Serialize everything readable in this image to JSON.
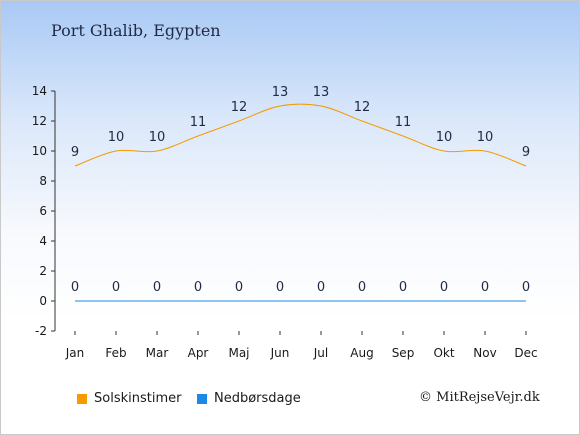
{
  "chart_data": {
    "type": "line",
    "title": "Port Ghalib, Egypten",
    "categories": [
      "Jan",
      "Feb",
      "Mar",
      "Apr",
      "Maj",
      "Jun",
      "Jul",
      "Aug",
      "Sep",
      "Okt",
      "Nov",
      "Dec"
    ],
    "series": [
      {
        "name": "Solskinstimer",
        "color": "#f59a00",
        "values": [
          9,
          10,
          10,
          11,
          12,
          13,
          13,
          12,
          11,
          10,
          10,
          9
        ]
      },
      {
        "name": "Nedbørsdage",
        "color": "#1e88e5",
        "values": [
          0,
          0,
          0,
          0,
          0,
          0,
          0,
          0,
          0,
          0,
          0,
          0
        ]
      }
    ],
    "ylim": [
      -2,
      14
    ],
    "yticks": [
      -2,
      0,
      2,
      4,
      6,
      8,
      10,
      12,
      14
    ],
    "grid": false,
    "legend_position": "bottom-left"
  },
  "footer": {
    "copyright": "© MitRejseVejr.dk"
  }
}
